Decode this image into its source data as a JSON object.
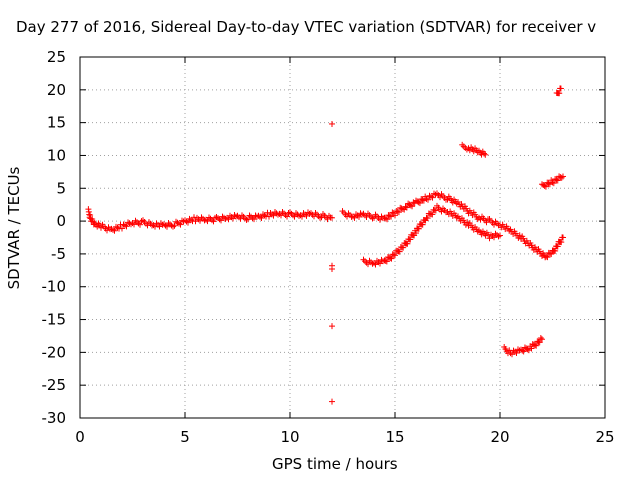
{
  "chart_data": {
    "type": "scatter",
    "title": "Day 277 of 2016, Sidereal Day-to-day VTEC variation (SDTVAR) for receiver v",
    "xlabel": "GPS time / hours",
    "ylabel": "SDTVAR / TECUs",
    "xlim": [
      0,
      25
    ],
    "ylim": [
      -30,
      25
    ],
    "xticks": [
      0,
      5,
      10,
      15,
      20,
      25
    ],
    "yticks": [
      -30,
      -25,
      -20,
      -15,
      -10,
      -5,
      0,
      5,
      10,
      15,
      20,
      25
    ],
    "grid": true,
    "marker": "+",
    "color": "#ff0000",
    "series": [
      {
        "values": [
          [
            0.4,
            1.5
          ],
          [
            0.5,
            0.5
          ],
          [
            0.7,
            -0.5
          ],
          [
            1.0,
            -0.8
          ],
          [
            1.5,
            -1.3
          ],
          [
            2.0,
            -0.8
          ],
          [
            2.5,
            -0.3
          ],
          [
            3.0,
            -0.2
          ],
          [
            3.5,
            -0.5
          ],
          [
            4.0,
            -0.7
          ],
          [
            4.5,
            -0.5
          ],
          [
            5.0,
            0.0
          ],
          [
            5.5,
            0.3
          ],
          [
            6.0,
            0.2
          ],
          [
            6.5,
            0.3
          ],
          [
            7.0,
            0.6
          ],
          [
            7.5,
            0.6
          ],
          [
            8.0,
            0.5
          ],
          [
            8.5,
            0.7
          ],
          [
            9.0,
            1.0
          ],
          [
            9.5,
            1.1
          ],
          [
            10.0,
            1.0
          ],
          [
            10.5,
            1.0
          ],
          [
            11.0,
            1.0
          ],
          [
            11.5,
            0.8
          ],
          [
            12.0,
            0.5
          ]
        ]
      },
      {
        "values": [
          [
            12.0,
            14.8
          ],
          [
            12.0,
            -6.8
          ],
          [
            12.0,
            -7.3
          ],
          [
            12.0,
            -16.0
          ],
          [
            12.0,
            -27.5
          ]
        ]
      },
      {
        "values": [
          [
            12.5,
            1.2
          ],
          [
            13.0,
            0.8
          ],
          [
            13.5,
            0.9
          ],
          [
            14.0,
            0.7
          ],
          [
            14.5,
            0.4
          ],
          [
            15.0,
            1.2
          ],
          [
            15.5,
            2.2
          ],
          [
            16.0,
            2.8
          ],
          [
            16.5,
            3.5
          ],
          [
            17.0,
            4.0
          ],
          [
            17.5,
            3.5
          ],
          [
            18.0,
            2.8
          ],
          [
            18.5,
            1.5
          ],
          [
            19.0,
            0.5
          ],
          [
            19.5,
            0.0
          ],
          [
            20.0,
            -0.5
          ],
          [
            20.5,
            -1.5
          ],
          [
            21.0,
            -2.5
          ],
          [
            21.5,
            -3.8
          ],
          [
            22.0,
            -5.0
          ],
          [
            22.2,
            -5.4
          ],
          [
            22.5,
            -4.8
          ],
          [
            23.0,
            -2.5
          ]
        ]
      },
      {
        "values": [
          [
            13.5,
            -6.2
          ],
          [
            14.0,
            -6.3
          ],
          [
            14.5,
            -6.2
          ],
          [
            15.0,
            -5.0
          ],
          [
            15.5,
            -3.5
          ],
          [
            16.0,
            -1.5
          ],
          [
            16.5,
            0.5
          ],
          [
            17.0,
            2.0
          ],
          [
            17.5,
            1.5
          ],
          [
            18.0,
            0.5
          ],
          [
            18.5,
            -0.5
          ],
          [
            19.0,
            -1.5
          ],
          [
            19.5,
            -2.3
          ],
          [
            20.0,
            -2.2
          ]
        ]
      },
      {
        "values": [
          [
            18.2,
            11.3
          ],
          [
            18.5,
            11.2
          ],
          [
            19.0,
            10.5
          ],
          [
            19.3,
            10.1
          ]
        ]
      },
      {
        "values": [
          [
            20.2,
            -19.5
          ],
          [
            20.5,
            -20.0
          ],
          [
            21.0,
            -19.8
          ],
          [
            21.5,
            -19.2
          ],
          [
            22.0,
            -18.0
          ]
        ]
      },
      {
        "values": [
          [
            22.0,
            5.3
          ],
          [
            22.5,
            6.0
          ],
          [
            23.0,
            6.8
          ]
        ]
      },
      {
        "values": [
          [
            22.7,
            19.2
          ],
          [
            22.9,
            20.2
          ]
        ]
      }
    ]
  }
}
